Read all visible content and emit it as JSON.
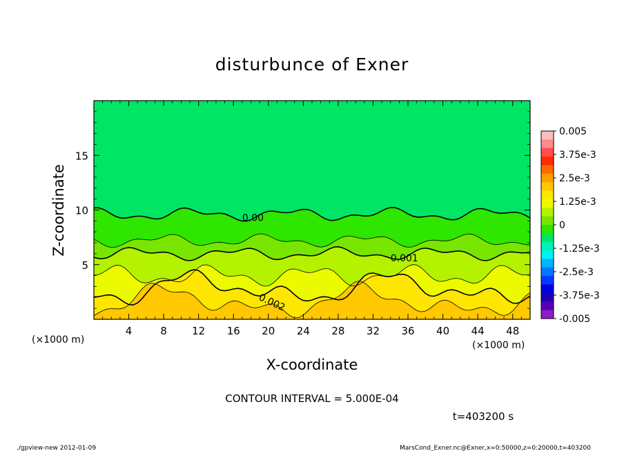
{
  "chart_data": {
    "type": "contour",
    "title": "disturbunce of Exner",
    "xlabel": "X-coordinate",
    "ylabel": "Z-coordinate",
    "x_unit_label": "(×1000 m)",
    "y_unit_label": "(×1000 m)",
    "xlim": [
      0,
      50
    ],
    "ylim": [
      0,
      20
    ],
    "x_ticks": [
      4,
      8,
      12,
      16,
      20,
      24,
      28,
      32,
      36,
      40,
      44,
      48
    ],
    "y_ticks": [
      5,
      10,
      15
    ],
    "contour_interval_text": "CONTOUR INTERVAL = 5.000E-04",
    "time_text": "t=403200 s",
    "contour_labels": [
      {
        "text": "0.00",
        "x": 17,
        "z": 9.3
      },
      {
        "text": "0.001",
        "x": 34,
        "z": 5.6
      },
      {
        "text": "0.002",
        "x": 19,
        "z": 2.1
      }
    ],
    "colorbar": {
      "labels": [
        "0.005",
        "3.75e-3",
        "2.5e-3",
        "1.25e-3",
        "0",
        "-1.25e-3",
        "-2.5e-3",
        "-3.75e-3",
        "-0.005"
      ],
      "colors_top_to_bottom": [
        "#ffbcbc",
        "#ff8a8a",
        "#ff4d4d",
        "#ff2a00",
        "#ff6a00",
        "#ff9e00",
        "#ffc800",
        "#ffe600",
        "#ecfa00",
        "#b4f200",
        "#78e600",
        "#2ee600",
        "#00e664",
        "#00f2b4",
        "#00f2f2",
        "#00b4ff",
        "#0078ff",
        "#003cff",
        "#0000e0",
        "#1e00b4",
        "#5a00b4",
        "#8c1ec8"
      ]
    },
    "value_bands": [
      {
        "z_top": 20,
        "value": -0.0004,
        "color": "#00e664"
      },
      {
        "z_top": 9.6,
        "value": 0.0002,
        "color": "#2ee600"
      },
      {
        "z_top": 7.2,
        "value": 0.0006,
        "color": "#78e600"
      },
      {
        "z_top": 6.0,
        "value": 0.0009,
        "color": "#b4f200"
      },
      {
        "z_top": 4.0,
        "value": 0.0014,
        "color": "#ecfa00"
      },
      {
        "z_top": 2.8,
        "value": 0.0019,
        "color": "#ffe600"
      },
      {
        "z_top": 1.6,
        "value": 0.0024,
        "color": "#ffc800"
      }
    ]
  },
  "footer": {
    "left": "./gpview-new  2012-01-09",
    "right": "MarsCond_Exner.nc@Exner,x=0:50000,z=0:20000,t=403200"
  }
}
